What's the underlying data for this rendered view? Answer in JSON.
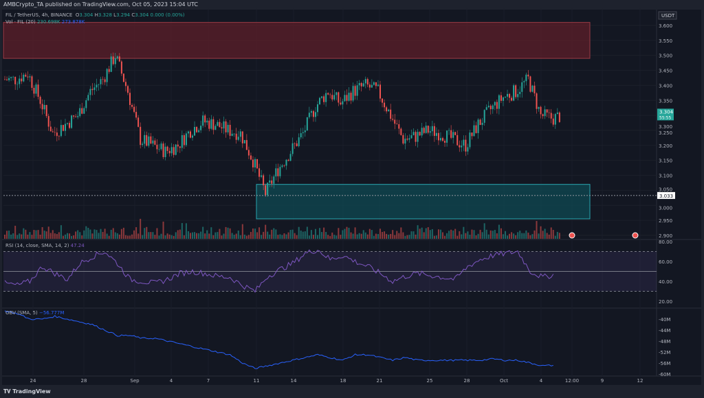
{
  "header": {
    "published": "AMBCrypto_TA published on TradingView.com, Oct 05, 2023 15:04 UTC"
  },
  "legend": {
    "symbol": "FIL / TetherUS, 4h, BINANCE",
    "o_label": "O",
    "o": "3.304",
    "h_label": "H",
    "h": "3.328",
    "l_label": "L",
    "l": "3.294",
    "c_label": "C",
    "c": "3.304",
    "change": "0.000 (0.00%)",
    "vol_label": "Vol · FIL (20)",
    "vol1": "230.698K",
    "vol2": "273.878K"
  },
  "rsi_label": {
    "name": "RSI (14, close, SMA, 14, 2)",
    "value": "47.24"
  },
  "obv_label": {
    "name": "OBV (SMA, 5)",
    "value": "−56.777M"
  },
  "footer": {
    "brand": "TradingView"
  },
  "colors": {
    "up": "#26a69a",
    "down": "#ef5350",
    "rsi": "#7e57c2",
    "obv": "#2962ff",
    "supply_zone": "#5d1f2a",
    "demand_zone": "#0f4650"
  },
  "chart_data": [
    {
      "type": "candlestick",
      "title": "FIL / TetherUS, 4h, BINANCE",
      "currency": "USDT",
      "ylim": [
        2.9,
        3.6
      ],
      "yticks": [
        "3.600",
        "3.550",
        "3.500",
        "3.450",
        "3.400",
        "3.350",
        "3.300",
        "3.250",
        "3.200",
        "3.150",
        "3.100",
        "3.050",
        "3.000",
        "2.950",
        "2.900"
      ],
      "xticks": [
        "24",
        "28",
        "Sep",
        "4",
        "7",
        "11",
        "14",
        "18",
        "21",
        "25",
        "28",
        "Oct",
        "4",
        "12:00",
        "9",
        "12"
      ],
      "current_price": "3.304",
      "countdown": "55:55",
      "crosshair_price": "3.033",
      "zones": [
        {
          "type": "supply",
          "from": 3.49,
          "to": 3.61
        },
        {
          "type": "demand",
          "from": 2.955,
          "to": 3.07
        }
      ],
      "daily_closes_from_aug22": [
        3.42,
        3.44,
        3.35,
        3.24,
        3.27,
        3.3,
        3.38,
        3.42,
        3.5,
        3.38,
        3.22,
        3.2,
        3.18,
        3.2,
        3.25,
        3.28,
        3.27,
        3.25,
        3.24,
        3.15,
        3.04,
        3.12,
        3.18,
        3.24,
        3.33,
        3.38,
        3.34,
        3.38,
        3.4,
        3.38,
        3.3,
        3.22,
        3.23,
        3.25,
        3.24,
        3.22,
        3.2,
        3.27,
        3.32,
        3.36,
        3.38,
        3.42,
        3.3,
        3.29,
        3.304
      ]
    },
    {
      "type": "line",
      "name": "RSI (14, close, SMA, 14, 2)",
      "ylim": [
        20,
        80
      ],
      "yticks": [
        "80.00",
        "60.00",
        "40.00",
        "20.00"
      ],
      "bands": [
        30,
        50,
        70
      ],
      "daily_values": [
        38,
        36,
        40,
        55,
        48,
        42,
        58,
        65,
        70,
        58,
        42,
        40,
        38,
        42,
        48,
        50,
        48,
        45,
        44,
        36,
        30,
        45,
        52,
        58,
        68,
        72,
        62,
        66,
        60,
        55,
        48,
        40,
        45,
        48,
        46,
        44,
        42,
        55,
        62,
        66,
        68,
        70,
        50,
        44,
        47.24
      ]
    },
    {
      "type": "line",
      "name": "OBV (SMA, 5)",
      "unit": "M",
      "ylim": [
        -61,
        -36
      ],
      "yticks": [
        "-40M",
        "-44M",
        "-48M",
        "-52M",
        "-56M",
        "-60M"
      ],
      "daily_values": [
        -37,
        -38,
        -40,
        -40,
        -39,
        -40,
        -41,
        -42,
        -44,
        -46,
        -46,
        -47,
        -47,
        -48,
        -49,
        -50,
        -51,
        -52,
        -53,
        -56,
        -58,
        -57,
        -56,
        -55,
        -54,
        -53,
        -54,
        -55,
        -53,
        -53,
        -54,
        -55,
        -54,
        -55,
        -55,
        -55,
        -55,
        -55,
        -55,
        -54.5,
        -55,
        -55,
        -56,
        -57,
        -56.8
      ]
    }
  ]
}
